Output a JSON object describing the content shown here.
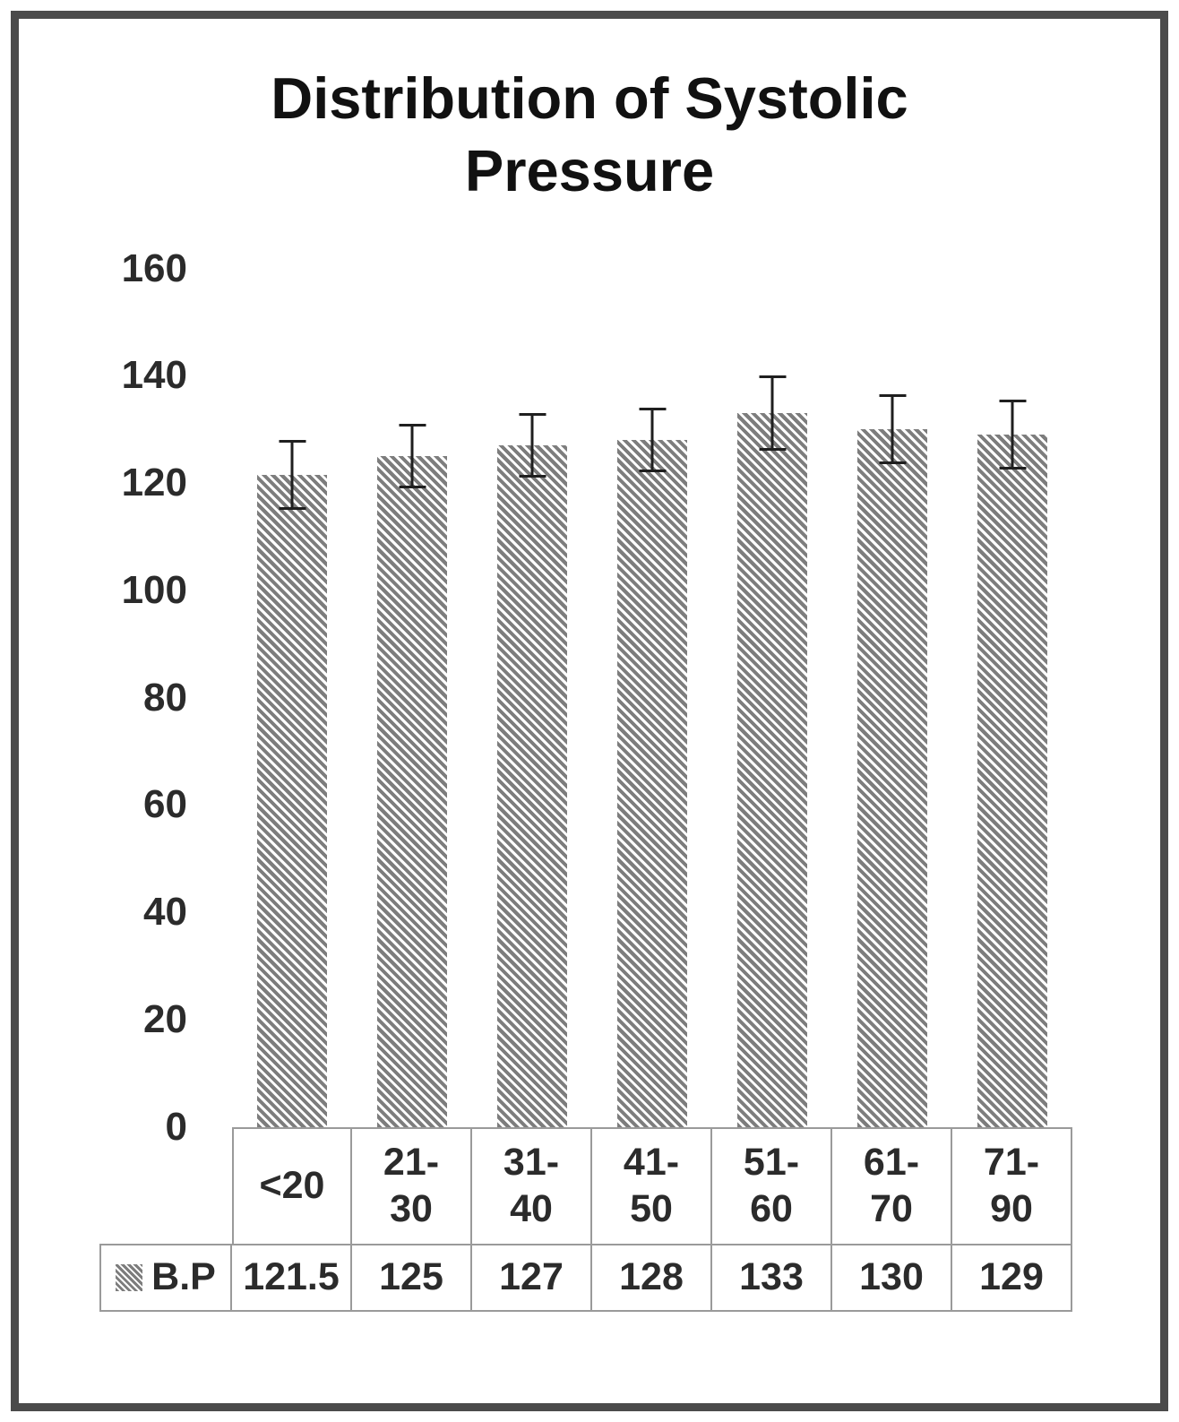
{
  "title": "Distribution of Systolic Pressure",
  "colors": {
    "bar_hatch": "#7d7d7d",
    "error_bar": "#1f1f1f",
    "table_border": "#9a9a9a",
    "frame_border": "#4b4b4b"
  },
  "chart_data": {
    "type": "bar",
    "title": "Distribution of Systolic Pressure",
    "categories": [
      "<20",
      "21-30",
      "31-40",
      "41-50",
      "51-60",
      "61-70",
      "71-90"
    ],
    "category_display": [
      "<20",
      "21-\n30",
      "31-\n40",
      "41-\n50",
      "51-\n60",
      "61-\n70",
      "71-\n90"
    ],
    "series": [
      {
        "name": "B.P",
        "values": [
          121.5,
          125,
          127,
          128,
          133,
          130,
          129
        ],
        "error": [
          6.5,
          6,
          6,
          6,
          7,
          6.5,
          6.5
        ]
      }
    ],
    "value_labels": [
      "121.5",
      "125",
      "127",
      "128",
      "133",
      "130",
      "129"
    ],
    "legend_label": "B.P",
    "xlabel": "",
    "ylabel": "",
    "ylim": [
      0,
      160
    ],
    "yticks": [
      0,
      20,
      40,
      60,
      80,
      100,
      120,
      140,
      160
    ],
    "grid": false,
    "legend_position": "bottom-table"
  }
}
